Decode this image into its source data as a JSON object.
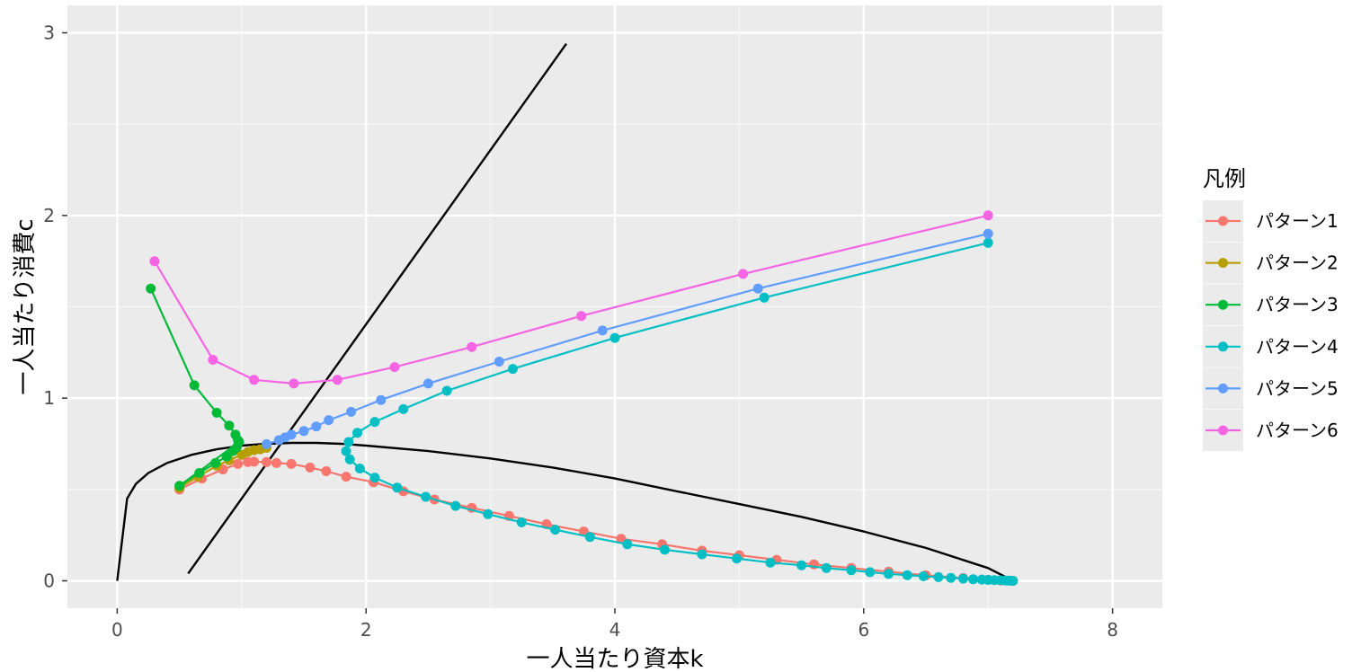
{
  "chart_data": {
    "type": "line",
    "xlabel": "一人当たり資本k",
    "ylabel": "一人当たり消費c",
    "xlim": [
      -0.4,
      8.4
    ],
    "ylim": [
      -0.15,
      3.15
    ],
    "x_ticks": [
      0,
      2,
      4,
      6,
      8
    ],
    "y_ticks": [
      0,
      1,
      2,
      3
    ],
    "grid": true,
    "legend": {
      "title": "凡例",
      "placement": "right",
      "entries": [
        "パターン1",
        "パターン2",
        "パターン3",
        "パターン4",
        "パターン5",
        "パターン6"
      ]
    },
    "reference_lines": [
      {
        "color": "#000000",
        "points": [
          [
            0,
            0
          ],
          [
            0.08,
            0.45
          ],
          [
            0.15,
            0.53
          ],
          [
            0.25,
            0.59
          ],
          [
            0.4,
            0.645
          ],
          [
            0.6,
            0.69
          ],
          [
            0.8,
            0.72
          ],
          [
            1.0,
            0.74
          ],
          [
            1.2,
            0.75
          ],
          [
            1.4,
            0.755
          ],
          [
            1.6,
            0.755
          ],
          [
            1.8,
            0.75
          ],
          [
            2.0,
            0.74
          ],
          [
            2.5,
            0.71
          ],
          [
            3.0,
            0.67
          ],
          [
            3.5,
            0.62
          ],
          [
            4.0,
            0.56
          ],
          [
            4.5,
            0.49
          ],
          [
            5.0,
            0.42
          ],
          [
            5.5,
            0.35
          ],
          [
            6.0,
            0.27
          ],
          [
            6.5,
            0.18
          ],
          [
            7.0,
            0.07
          ],
          [
            7.2,
            0.0
          ]
        ]
      },
      {
        "color": "#000000",
        "points": [
          [
            0.57,
            0.04
          ],
          [
            3.61,
            2.94
          ]
        ]
      }
    ],
    "series": [
      {
        "name": "パターン1",
        "color": "#F8766D",
        "points": [
          [
            0.5,
            0.5
          ],
          [
            0.68,
            0.56
          ],
          [
            0.85,
            0.61
          ],
          [
            0.97,
            0.64
          ],
          [
            1.05,
            0.65
          ],
          [
            1.1,
            0.652
          ],
          [
            1.2,
            0.65
          ],
          [
            1.28,
            0.645
          ],
          [
            1.4,
            0.64
          ],
          [
            1.55,
            0.62
          ],
          [
            1.68,
            0.6
          ],
          [
            1.84,
            0.57
          ],
          [
            2.06,
            0.54
          ],
          [
            2.3,
            0.49
          ],
          [
            2.55,
            0.445
          ],
          [
            2.85,
            0.4
          ],
          [
            3.15,
            0.355
          ],
          [
            3.45,
            0.31
          ],
          [
            3.75,
            0.27
          ],
          [
            4.05,
            0.23
          ],
          [
            4.38,
            0.2
          ],
          [
            4.7,
            0.165
          ],
          [
            5.0,
            0.14
          ],
          [
            5.3,
            0.115
          ],
          [
            5.6,
            0.09
          ],
          [
            5.9,
            0.07
          ],
          [
            6.2,
            0.05
          ],
          [
            6.5,
            0.03
          ],
          [
            6.8,
            0.015
          ],
          [
            7.0,
            0.006
          ],
          [
            7.1,
            0.002
          ],
          [
            7.2,
            0.0
          ]
        ]
      },
      {
        "name": "パターン2",
        "color": "#B79F00",
        "points": [
          [
            0.5,
            0.51
          ],
          [
            0.65,
            0.57
          ],
          [
            0.8,
            0.63
          ],
          [
            0.9,
            0.66
          ],
          [
            1.0,
            0.69
          ],
          [
            1.05,
            0.705
          ],
          [
            1.1,
            0.715
          ],
          [
            1.15,
            0.72
          ],
          [
            1.2,
            0.728
          ]
        ]
      },
      {
        "name": "パターン3",
        "color": "#00BA38",
        "points": [
          [
            0.27,
            1.6
          ],
          [
            0.62,
            1.07
          ],
          [
            0.8,
            0.92
          ],
          [
            0.9,
            0.85
          ],
          [
            0.95,
            0.8
          ],
          [
            0.97,
            0.77
          ],
          [
            0.98,
            0.76
          ],
          [
            0.5,
            0.52
          ],
          [
            0.66,
            0.59
          ],
          [
            0.79,
            0.645
          ],
          [
            0.88,
            0.68
          ],
          [
            0.93,
            0.71
          ],
          [
            0.96,
            0.73
          ]
        ]
      },
      {
        "name": "パターン4",
        "color": "#00BFC4",
        "points": [
          [
            7.0,
            1.85
          ],
          [
            5.2,
            1.55
          ],
          [
            4.0,
            1.33
          ],
          [
            3.18,
            1.16
          ],
          [
            2.65,
            1.04
          ],
          [
            2.3,
            0.94
          ],
          [
            2.07,
            0.87
          ],
          [
            1.93,
            0.81
          ],
          [
            1.86,
            0.76
          ],
          [
            1.84,
            0.71
          ],
          [
            1.87,
            0.665
          ],
          [
            1.95,
            0.615
          ],
          [
            2.07,
            0.565
          ],
          [
            2.25,
            0.51
          ],
          [
            2.48,
            0.46
          ],
          [
            2.72,
            0.41
          ],
          [
            2.98,
            0.365
          ],
          [
            3.25,
            0.32
          ],
          [
            3.52,
            0.28
          ],
          [
            3.8,
            0.24
          ],
          [
            4.1,
            0.2
          ],
          [
            4.4,
            0.17
          ],
          [
            4.7,
            0.145
          ],
          [
            4.98,
            0.122
          ],
          [
            5.25,
            0.1
          ],
          [
            5.5,
            0.085
          ],
          [
            5.7,
            0.07
          ],
          [
            5.9,
            0.058
          ],
          [
            6.05,
            0.047
          ],
          [
            6.2,
            0.038
          ],
          [
            6.35,
            0.031
          ],
          [
            6.48,
            0.025
          ],
          [
            6.6,
            0.02
          ],
          [
            6.7,
            0.016
          ],
          [
            6.8,
            0.012
          ],
          [
            6.88,
            0.009
          ],
          [
            6.95,
            0.007
          ],
          [
            7.0,
            0.005
          ],
          [
            7.05,
            0.004
          ],
          [
            7.1,
            0.003
          ],
          [
            7.14,
            0.002
          ],
          [
            7.17,
            0.001
          ],
          [
            7.2,
            0.0
          ]
        ]
      },
      {
        "name": "パターン5",
        "color": "#619CFF",
        "points": [
          [
            1.2,
            0.748
          ],
          [
            1.3,
            0.77
          ],
          [
            1.35,
            0.785
          ],
          [
            1.4,
            0.8
          ],
          [
            1.5,
            0.82
          ],
          [
            1.6,
            0.845
          ],
          [
            1.7,
            0.88
          ],
          [
            1.88,
            0.925
          ],
          [
            2.12,
            0.99
          ],
          [
            2.5,
            1.08
          ],
          [
            3.07,
            1.2
          ],
          [
            3.9,
            1.37
          ],
          [
            5.15,
            1.6
          ],
          [
            7.0,
            1.9
          ]
        ]
      },
      {
        "name": "パターン6",
        "color": "#F564E3",
        "points": [
          [
            0.3,
            1.75
          ],
          [
            0.77,
            1.21
          ],
          [
            1.1,
            1.1
          ],
          [
            1.42,
            1.08
          ],
          [
            1.77,
            1.1
          ],
          [
            2.23,
            1.17
          ],
          [
            2.85,
            1.28
          ],
          [
            3.73,
            1.45
          ],
          [
            5.03,
            1.68
          ],
          [
            7.0,
            2.0
          ]
        ]
      }
    ]
  }
}
